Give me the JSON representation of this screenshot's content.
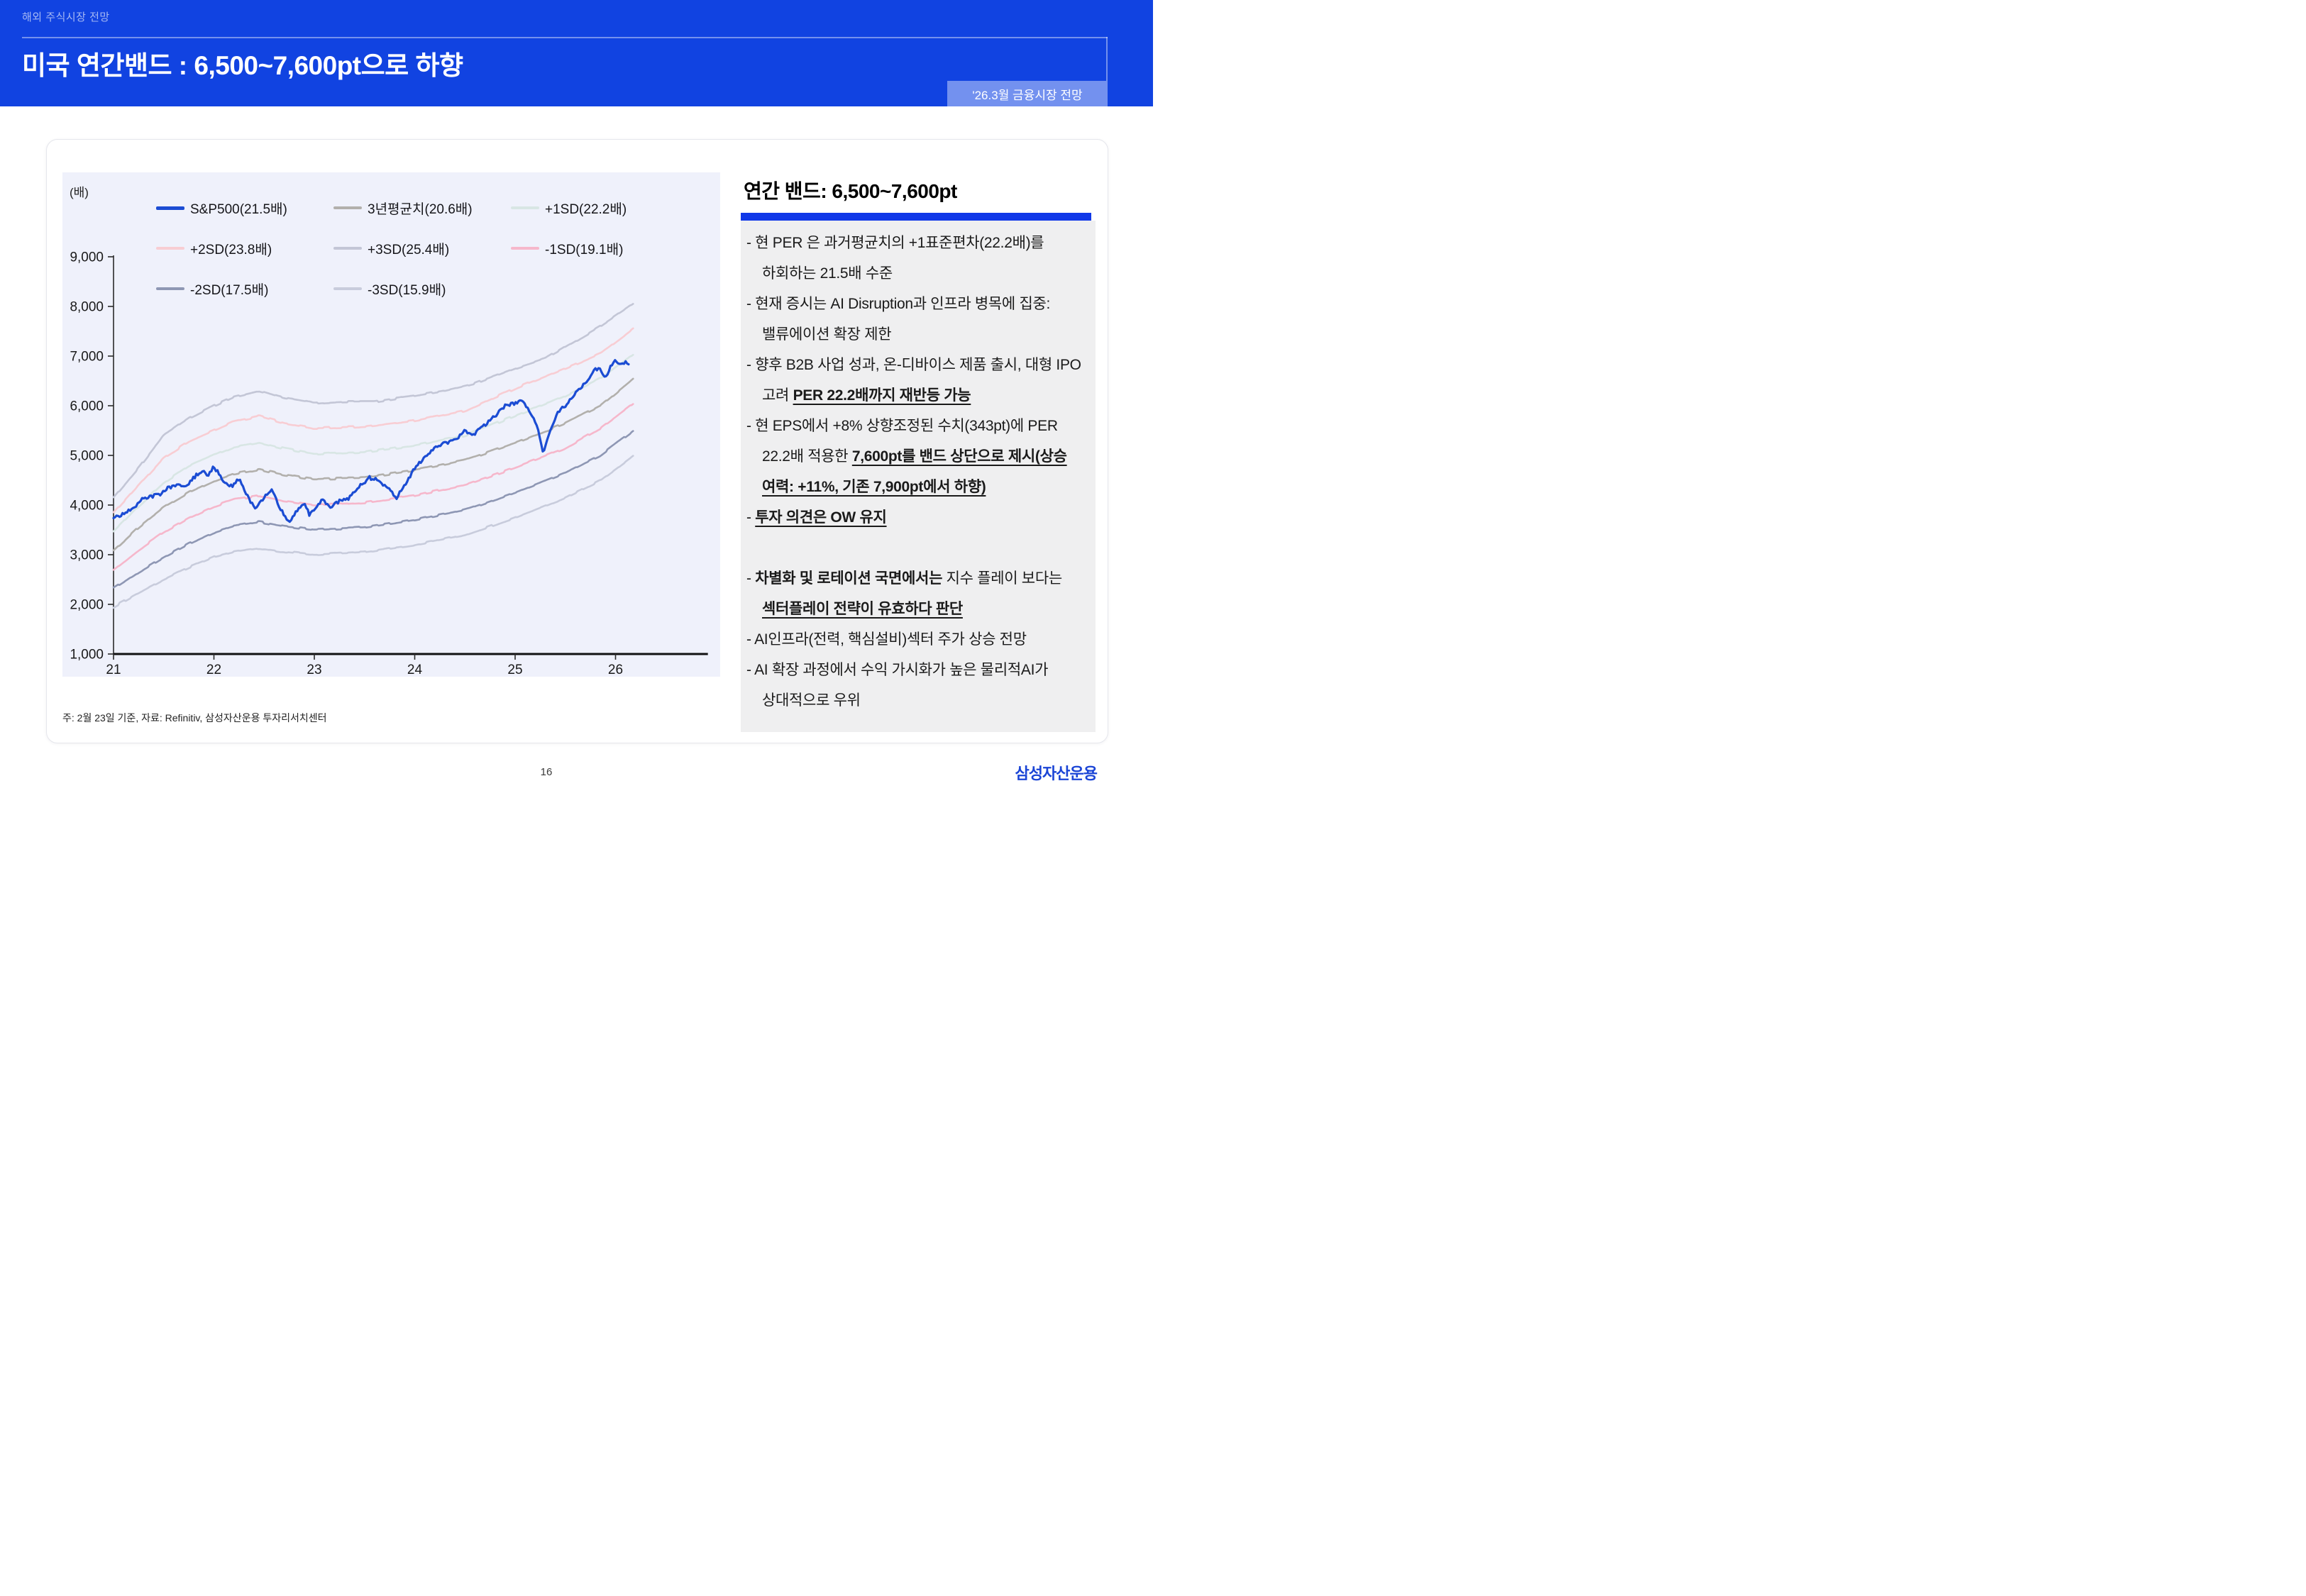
{
  "banner": {
    "eyebrow": "해외 주식시장 전망",
    "title": "미국 연간밴드 : 6,500~7,600pt으로 하향",
    "badge": "'26.3월 금융시장 전망",
    "bg": "#1143e1",
    "badge_bg": "#7391ef"
  },
  "chart": {
    "unit_label": "(배)",
    "note": "주: 2월 23일 기준, 자료: Refinitiv, 삼성자산운용 투자리서치센터",
    "legend": [
      {
        "label": "S&P500(21.5배)",
        "color": "#1b4cd3",
        "row": 0,
        "col": 0,
        "thick": true
      },
      {
        "label": "3년평균치(20.6배)",
        "color": "#b2b0ac",
        "row": 0,
        "col": 1
      },
      {
        "label": "+1SD(22.2배)",
        "color": "#d8e6e4",
        "row": 0,
        "col": 2
      },
      {
        "label": "+2SD(23.8배)",
        "color": "#f8cdd3",
        "row": 1,
        "col": 0
      },
      {
        "label": "+3SD(25.4배)",
        "color": "#c3c6d6",
        "row": 1,
        "col": 1
      },
      {
        "label": "-1SD(19.1배)",
        "color": "#f6b7cb",
        "row": 1,
        "col": 2
      },
      {
        "label": "-2SD(17.5배)",
        "color": "#8e97b4",
        "row": 2,
        "col": 0
      },
      {
        "label": "-3SD(15.9배)",
        "color": "#c8ccdc",
        "row": 2,
        "col": 1
      }
    ]
  },
  "chart_data": {
    "type": "line",
    "title": "S&P500 index vs PER standard-deviation bands",
    "ylabel": "(배)",
    "ylim": [
      1000,
      9000
    ],
    "xlim": [
      21,
      26.92
    ],
    "y_ticks": [
      1000,
      2000,
      3000,
      4000,
      5000,
      6000,
      7000,
      8000,
      9000
    ],
    "x_ticks": [
      21,
      22,
      23,
      24,
      25,
      26
    ],
    "grid": false,
    "legend_position": "top-inside",
    "series": [
      {
        "name": "-3SD(15.9배)",
        "color": "#c8ccdc",
        "style": "band",
        "points": [
          [
            21.0,
            1950
          ],
          [
            21.25,
            2230
          ],
          [
            21.5,
            2500
          ],
          [
            21.75,
            2740
          ],
          [
            22.0,
            2950
          ],
          [
            22.2,
            3060
          ],
          [
            22.45,
            3130
          ],
          [
            22.7,
            3060
          ],
          [
            23.0,
            3000
          ],
          [
            23.5,
            3050
          ],
          [
            24.0,
            3200
          ],
          [
            24.5,
            3400
          ],
          [
            25.0,
            3750
          ],
          [
            25.5,
            4150
          ],
          [
            25.85,
            4500
          ],
          [
            26.18,
            5000
          ]
        ]
      },
      {
        "name": "-2SD(17.5배)",
        "color": "#8e97b4",
        "style": "band",
        "points": [
          [
            21.0,
            2320
          ],
          [
            21.25,
            2650
          ],
          [
            21.5,
            2950
          ],
          [
            21.75,
            3220
          ],
          [
            22.0,
            3450
          ],
          [
            22.2,
            3580
          ],
          [
            22.45,
            3660
          ],
          [
            22.7,
            3570
          ],
          [
            23.0,
            3500
          ],
          [
            23.5,
            3550
          ],
          [
            24.0,
            3700
          ],
          [
            24.5,
            3900
          ],
          [
            25.0,
            4250
          ],
          [
            25.5,
            4650
          ],
          [
            25.85,
            5000
          ],
          [
            26.18,
            5500
          ]
        ]
      },
      {
        "name": "-1SD(19.1배)",
        "color": "#f6b7cb",
        "style": "band",
        "points": [
          [
            21.0,
            2700
          ],
          [
            21.25,
            3100
          ],
          [
            21.5,
            3450
          ],
          [
            21.75,
            3740
          ],
          [
            22.0,
            3970
          ],
          [
            22.2,
            4110
          ],
          [
            22.45,
            4190
          ],
          [
            22.7,
            4090
          ],
          [
            23.0,
            4000
          ],
          [
            23.5,
            4050
          ],
          [
            24.0,
            4200
          ],
          [
            24.5,
            4400
          ],
          [
            25.0,
            4750
          ],
          [
            25.5,
            5150
          ],
          [
            25.85,
            5550
          ],
          [
            26.18,
            6050
          ]
        ]
      },
      {
        "name": "3년평균치(20.6배)",
        "color": "#b2b0ac",
        "style": "band",
        "points": [
          [
            21.0,
            3080
          ],
          [
            21.25,
            3550
          ],
          [
            21.5,
            3950
          ],
          [
            21.75,
            4250
          ],
          [
            22.0,
            4480
          ],
          [
            22.2,
            4630
          ],
          [
            22.45,
            4720
          ],
          [
            22.7,
            4610
          ],
          [
            23.0,
            4520
          ],
          [
            23.5,
            4550
          ],
          [
            24.0,
            4700
          ],
          [
            24.5,
            4900
          ],
          [
            25.0,
            5250
          ],
          [
            25.5,
            5650
          ],
          [
            25.85,
            6000
          ],
          [
            26.18,
            6550
          ]
        ]
      },
      {
        "name": "+1SD(22.2배)",
        "color": "#d8e6e4",
        "style": "band",
        "points": [
          [
            21.0,
            3460
          ],
          [
            21.25,
            3980
          ],
          [
            21.5,
            4450
          ],
          [
            21.75,
            4780
          ],
          [
            22.0,
            5000
          ],
          [
            22.2,
            5170
          ],
          [
            22.45,
            5260
          ],
          [
            22.7,
            5140
          ],
          [
            23.0,
            5030
          ],
          [
            23.5,
            5070
          ],
          [
            24.0,
            5200
          ],
          [
            24.5,
            5400
          ],
          [
            25.0,
            5800
          ],
          [
            25.5,
            6200
          ],
          [
            25.85,
            6550
          ],
          [
            26.18,
            7050
          ]
        ]
      },
      {
        "name": "+2SD(23.8배)",
        "color": "#f8cdd3",
        "style": "band",
        "points": [
          [
            21.0,
            3840
          ],
          [
            21.25,
            4400
          ],
          [
            21.5,
            4950
          ],
          [
            21.75,
            5280
          ],
          [
            22.0,
            5500
          ],
          [
            22.2,
            5680
          ],
          [
            22.45,
            5790
          ],
          [
            22.7,
            5650
          ],
          [
            23.0,
            5550
          ],
          [
            23.5,
            5580
          ],
          [
            24.0,
            5700
          ],
          [
            24.5,
            5900
          ],
          [
            25.0,
            6350
          ],
          [
            25.5,
            6750
          ],
          [
            25.85,
            7050
          ],
          [
            26.18,
            7550
          ]
        ]
      },
      {
        "name": "+3SD(25.4배)",
        "color": "#c3c6d6",
        "style": "band",
        "points": [
          [
            21.0,
            4150
          ],
          [
            21.25,
            4750
          ],
          [
            21.5,
            5400
          ],
          [
            21.75,
            5750
          ],
          [
            22.0,
            6000
          ],
          [
            22.2,
            6180
          ],
          [
            22.45,
            6300
          ],
          [
            22.7,
            6150
          ],
          [
            23.0,
            6050
          ],
          [
            23.3,
            6080
          ],
          [
            23.6,
            6080
          ],
          [
            24.0,
            6200
          ],
          [
            24.3,
            6300
          ],
          [
            24.6,
            6450
          ],
          [
            25.0,
            6750
          ],
          [
            25.3,
            6950
          ],
          [
            25.6,
            7300
          ],
          [
            25.85,
            7600
          ],
          [
            26.18,
            8050
          ]
        ]
      },
      {
        "name": "S&P500(21.5배)",
        "color": "#1b4cd3",
        "style": "price",
        "points": [
          [
            21.0,
            3750
          ],
          [
            21.1,
            3830
          ],
          [
            21.2,
            3950
          ],
          [
            21.3,
            4130
          ],
          [
            21.45,
            4200
          ],
          [
            21.55,
            4350
          ],
          [
            21.65,
            4420
          ],
          [
            21.7,
            4350
          ],
          [
            21.8,
            4550
          ],
          [
            21.88,
            4680
          ],
          [
            21.95,
            4600
          ],
          [
            22.0,
            4780
          ],
          [
            22.1,
            4450
          ],
          [
            22.18,
            4380
          ],
          [
            22.25,
            4550
          ],
          [
            22.35,
            4100
          ],
          [
            22.42,
            3950
          ],
          [
            22.5,
            4150
          ],
          [
            22.58,
            4300
          ],
          [
            22.65,
            3980
          ],
          [
            22.75,
            3640
          ],
          [
            22.83,
            3900
          ],
          [
            22.9,
            4050
          ],
          [
            22.95,
            3820
          ],
          [
            23.0,
            3900
          ],
          [
            23.08,
            4130
          ],
          [
            23.15,
            3950
          ],
          [
            23.25,
            4080
          ],
          [
            23.35,
            4150
          ],
          [
            23.45,
            4380
          ],
          [
            23.55,
            4550
          ],
          [
            23.65,
            4480
          ],
          [
            23.75,
            4300
          ],
          [
            23.82,
            4150
          ],
          [
            23.9,
            4400
          ],
          [
            24.0,
            4750
          ],
          [
            24.1,
            4950
          ],
          [
            24.2,
            5150
          ],
          [
            24.3,
            5250
          ],
          [
            24.4,
            5300
          ],
          [
            24.5,
            5500
          ],
          [
            24.58,
            5400
          ],
          [
            24.65,
            5550
          ],
          [
            24.72,
            5650
          ],
          [
            24.8,
            5800
          ],
          [
            24.9,
            6000
          ],
          [
            25.0,
            6050
          ],
          [
            25.08,
            6100
          ],
          [
            25.15,
            5850
          ],
          [
            25.22,
            5600
          ],
          [
            25.28,
            5050
          ],
          [
            25.35,
            5500
          ],
          [
            25.42,
            5850
          ],
          [
            25.5,
            6000
          ],
          [
            25.6,
            6250
          ],
          [
            25.7,
            6450
          ],
          [
            25.78,
            6700
          ],
          [
            25.85,
            6750
          ],
          [
            25.9,
            6550
          ],
          [
            25.95,
            6800
          ],
          [
            26.0,
            6900
          ],
          [
            26.05,
            6820
          ],
          [
            26.1,
            6880
          ],
          [
            26.13,
            6850
          ]
        ]
      }
    ]
  },
  "panel": {
    "title": "연간 밴드: 6,500~7,600pt",
    "accent": "#1038e8",
    "bullets": [
      {
        "segments": [
          {
            "t": "현 PER 은 과거평균치의 +1표준편차(22.2배)를 하회하는 21.5배 수준"
          }
        ]
      },
      {
        "segments": [
          {
            "t": "현재 증시는 AI Disruption과 인프라 병목에 집중: 밸류에이션 확장 제한"
          }
        ]
      },
      {
        "segments": [
          {
            "t": "향후 B2B 사업 성과, 온-디바이스 제품 출시, 대형 IPO 고려 "
          },
          {
            "t": "PER 22.2배까지 재반등 가능",
            "b": 1,
            "u": 1
          }
        ]
      },
      {
        "segments": [
          {
            "t": "현 EPS에서 +8% 상향조정된 수치(343pt)에 PER 22.2배 적용한 "
          },
          {
            "t": "7,600pt를 밴드 상단으로 제시(상승 여력: +11%, 기존 7,900pt에서 하향)",
            "b": 1,
            "u": 1
          }
        ]
      },
      {
        "segments": [
          {
            "t": "투자 의견은 OW 유지",
            "b": 1,
            "u": 1
          }
        ]
      },
      {
        "gap": true,
        "segments": [
          {
            "t": "차별화 및 로테이션 국면에서는 ",
            "b": 1
          },
          {
            "t": "지수 플레이 보다는 "
          },
          {
            "t": "섹터플레이 전략이 유효하다 판단",
            "b": 1,
            "u": 1
          }
        ]
      },
      {
        "segments": [
          {
            "t": "AI인프라(전력, 핵심설비)섹터 주가 상승 전망"
          }
        ]
      },
      {
        "segments": [
          {
            "t": "AI 확장 과정에서 수익 가시화가 높은 물리적AI가 상대적으로 우위"
          }
        ]
      }
    ]
  },
  "footer": {
    "page": "16",
    "logo": "삼성자산운용",
    "logo_color": "#1b45d6"
  }
}
